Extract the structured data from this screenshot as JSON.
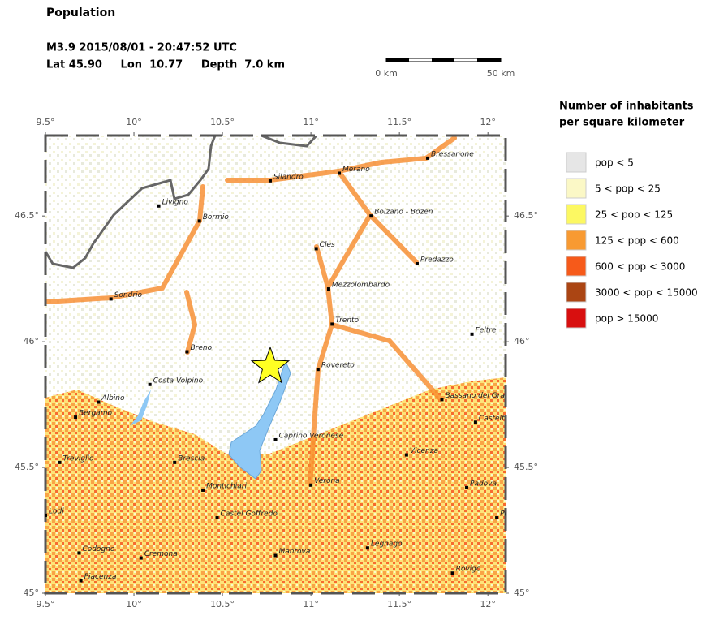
{
  "header": {
    "title": "Population",
    "event": "M3.9  2015/08/01 - 20:47:52 UTC",
    "location": "Lat 45.90     Lon  10.77     Depth  7.0 km"
  },
  "scale_bar": {
    "labels": [
      "0 km",
      "50 km"
    ]
  },
  "map": {
    "lon_range": [
      9.5,
      12.1
    ],
    "lat_range": [
      45,
      46.82
    ],
    "lon_ticks": [
      {
        "value": 9.5,
        "label": "9.5°"
      },
      {
        "value": 10,
        "label": "10°"
      },
      {
        "value": 10.5,
        "label": "10.5°"
      },
      {
        "value": 11,
        "label": "11°"
      },
      {
        "value": 11.5,
        "label": "11.5°"
      },
      {
        "value": 12,
        "label": "12°"
      }
    ],
    "lat_ticks": [
      {
        "value": 45,
        "label": "45°"
      },
      {
        "value": 45.5,
        "label": "45.5°"
      },
      {
        "value": 46,
        "label": "46°"
      },
      {
        "value": 46.5,
        "label": "46.5°"
      }
    ],
    "epicenter": {
      "lon": 10.77,
      "lat": 45.9
    },
    "cities": [
      {
        "name": "Bressanone",
        "lon": 11.66,
        "lat": 46.73
      },
      {
        "name": "Merano",
        "lon": 11.16,
        "lat": 46.67
      },
      {
        "name": "Silandro",
        "lon": 10.77,
        "lat": 46.64
      },
      {
        "name": "Livigno",
        "lon": 10.14,
        "lat": 46.54
      },
      {
        "name": "Bormio",
        "lon": 10.37,
        "lat": 46.48
      },
      {
        "name": "Bolzano - Bozen",
        "lon": 11.34,
        "lat": 46.5
      },
      {
        "name": "Cles",
        "lon": 11.03,
        "lat": 46.37
      },
      {
        "name": "Predazzo",
        "lon": 11.6,
        "lat": 46.31
      },
      {
        "name": "Sondrio",
        "lon": 9.87,
        "lat": 46.17
      },
      {
        "name": "Mezzolombardo",
        "lon": 11.1,
        "lat": 46.21
      },
      {
        "name": "Trento",
        "lon": 11.12,
        "lat": 46.07
      },
      {
        "name": "Feltre",
        "lon": 11.91,
        "lat": 46.03
      },
      {
        "name": "Breno",
        "lon": 10.3,
        "lat": 45.96
      },
      {
        "name": "Rovereto",
        "lon": 11.04,
        "lat": 45.89
      },
      {
        "name": "Costa Volpino",
        "lon": 10.09,
        "lat": 45.83
      },
      {
        "name": "Albino",
        "lon": 9.8,
        "lat": 45.76
      },
      {
        "name": "Bassano del Gra",
        "lon": 11.74,
        "lat": 45.77
      },
      {
        "name": "Bergamo",
        "lon": 9.67,
        "lat": 45.7
      },
      {
        "name": "Castelf",
        "lon": 11.93,
        "lat": 45.68
      },
      {
        "name": "Caprino Veronese",
        "lon": 10.8,
        "lat": 45.61
      },
      {
        "name": "Vicenza",
        "lon": 11.54,
        "lat": 45.55
      },
      {
        "name": "Treviglio",
        "lon": 9.58,
        "lat": 45.52
      },
      {
        "name": "Brescia",
        "lon": 10.23,
        "lat": 45.52
      },
      {
        "name": "Verona",
        "lon": 11.0,
        "lat": 45.43
      },
      {
        "name": "Padova",
        "lon": 11.88,
        "lat": 45.42
      },
      {
        "name": "Montichiari",
        "lon": 10.39,
        "lat": 45.41
      },
      {
        "name": "Lodi",
        "lon": 9.5,
        "lat": 45.31
      },
      {
        "name": "Castel Goffredo",
        "lon": 10.47,
        "lat": 45.3
      },
      {
        "name": "Pi",
        "lon": 12.05,
        "lat": 45.3
      },
      {
        "name": "Codogno",
        "lon": 9.69,
        "lat": 45.16
      },
      {
        "name": "Mantova",
        "lon": 10.8,
        "lat": 45.15
      },
      {
        "name": "Legnago",
        "lon": 11.32,
        "lat": 45.18
      },
      {
        "name": "Cremona",
        "lon": 10.04,
        "lat": 45.14
      },
      {
        "name": "Piacenza",
        "lon": 9.7,
        "lat": 45.05
      },
      {
        "name": "Rovigo",
        "lon": 11.8,
        "lat": 45.08
      }
    ]
  },
  "legend": {
    "title": [
      "Number of inhabitants",
      "per square kilometer"
    ],
    "items": [
      {
        "label": "pop < 5",
        "color": "#e6e6e6"
      },
      {
        "label": "5 < pop < 25",
        "color": "#fbf8c6"
      },
      {
        "label": "25 < pop < 125",
        "color": "#fcf862"
      },
      {
        "label": "125 < pop < 600",
        "color": "#f89a32"
      },
      {
        "label": "600 < pop < 3000",
        "color": "#f65a1a"
      },
      {
        "label": "3000 < pop < 15000",
        "color": "#ab4513"
      },
      {
        "label": "pop > 15000",
        "color": "#d80f0f"
      }
    ]
  }
}
